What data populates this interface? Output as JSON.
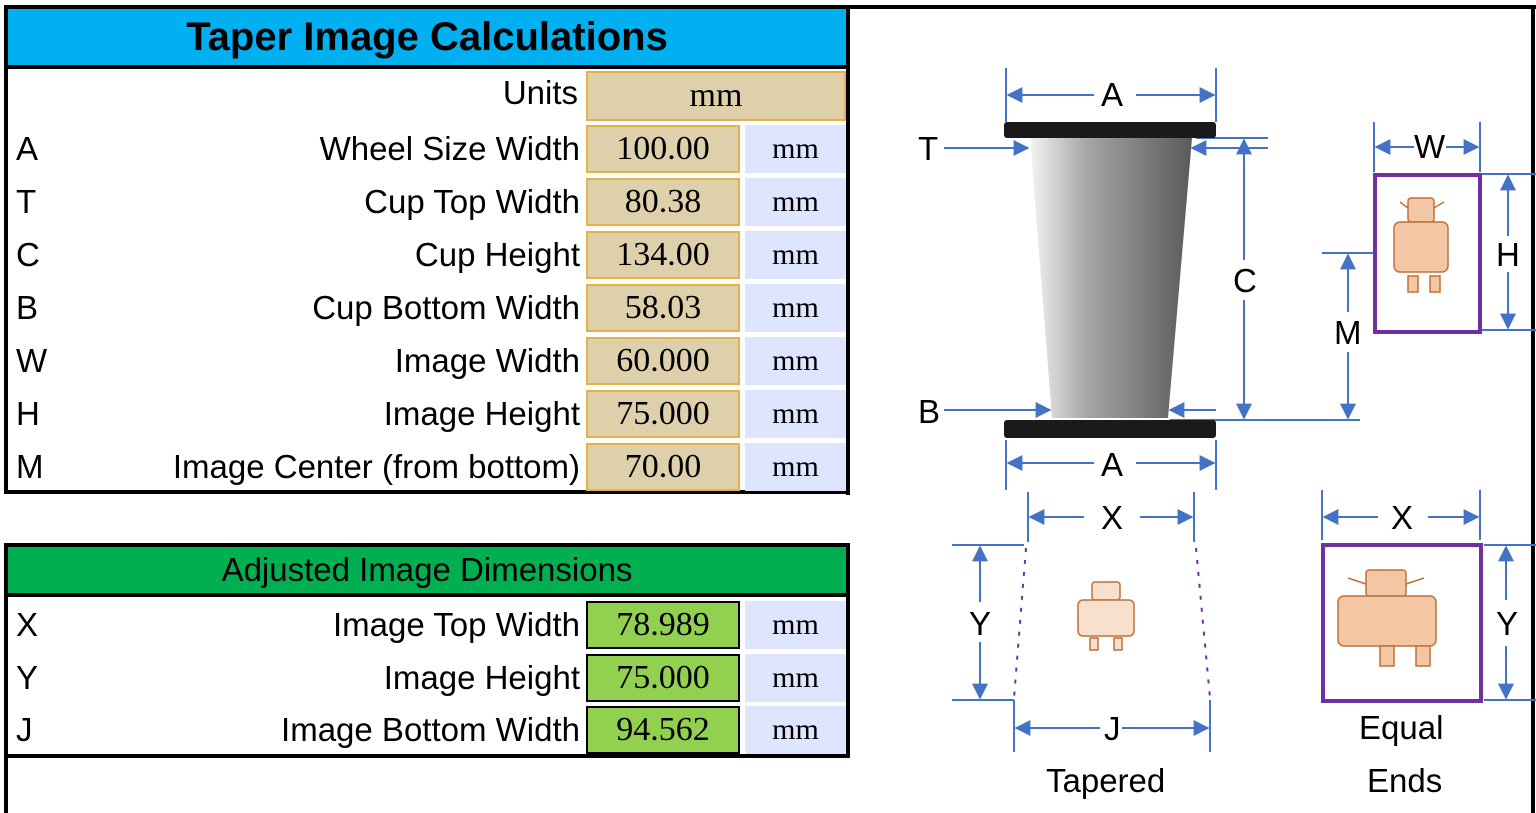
{
  "title": "Taper Image Calculations",
  "units_label": "Units",
  "units_value": "mm",
  "inputs": [
    {
      "letter": "A",
      "label": "Wheel Size Width",
      "value": "100.00",
      "unit": "mm"
    },
    {
      "letter": "T",
      "label": "Cup Top Width",
      "value": "80.38",
      "unit": "mm"
    },
    {
      "letter": "C",
      "label": "Cup Height",
      "value": "134.00",
      "unit": "mm"
    },
    {
      "letter": "B",
      "label": "Cup Bottom Width",
      "value": "58.03",
      "unit": "mm"
    },
    {
      "letter": "W",
      "label": "Image Width",
      "value": "60.000",
      "unit": "mm"
    },
    {
      "letter": "H",
      "label": "Image Height",
      "value": "75.000",
      "unit": "mm"
    },
    {
      "letter": "M",
      "label": "Image Center (from bottom)",
      "value": "70.00",
      "unit": "mm"
    }
  ],
  "adjusted_title": "Adjusted Image Dimensions",
  "outputs": [
    {
      "letter": "X",
      "label": "Image Top Width",
      "value": "78.989",
      "unit": "mm"
    },
    {
      "letter": "Y",
      "label": "Image Height",
      "value": "75.000",
      "unit": "mm"
    },
    {
      "letter": "J",
      "label": "Image Bottom Width",
      "value": "94.562",
      "unit": "mm"
    }
  ],
  "diagram": {
    "label_A_top": "A",
    "label_A_bottom": "A",
    "label_T": "T",
    "label_B": "B",
    "label_C": "C",
    "label_W": "W",
    "label_H": "H",
    "label_M": "M",
    "label_X_tapered": "X",
    "label_Y_tapered": "Y",
    "label_J": "J",
    "label_X_equal": "X",
    "label_Y_equal": "Y",
    "caption_tapered": "Tapered",
    "caption_equal_1": "Equal",
    "caption_equal_2": "Ends"
  },
  "colors": {
    "title_bg": "#00b0f0",
    "input_cell": "#ddd0ab",
    "unit_cell": "#dde5ff",
    "adjusted_bg": "#00b050",
    "output_cell": "#92d050",
    "dim_line": "#4472c4",
    "image_frame": "#7030a0"
  }
}
